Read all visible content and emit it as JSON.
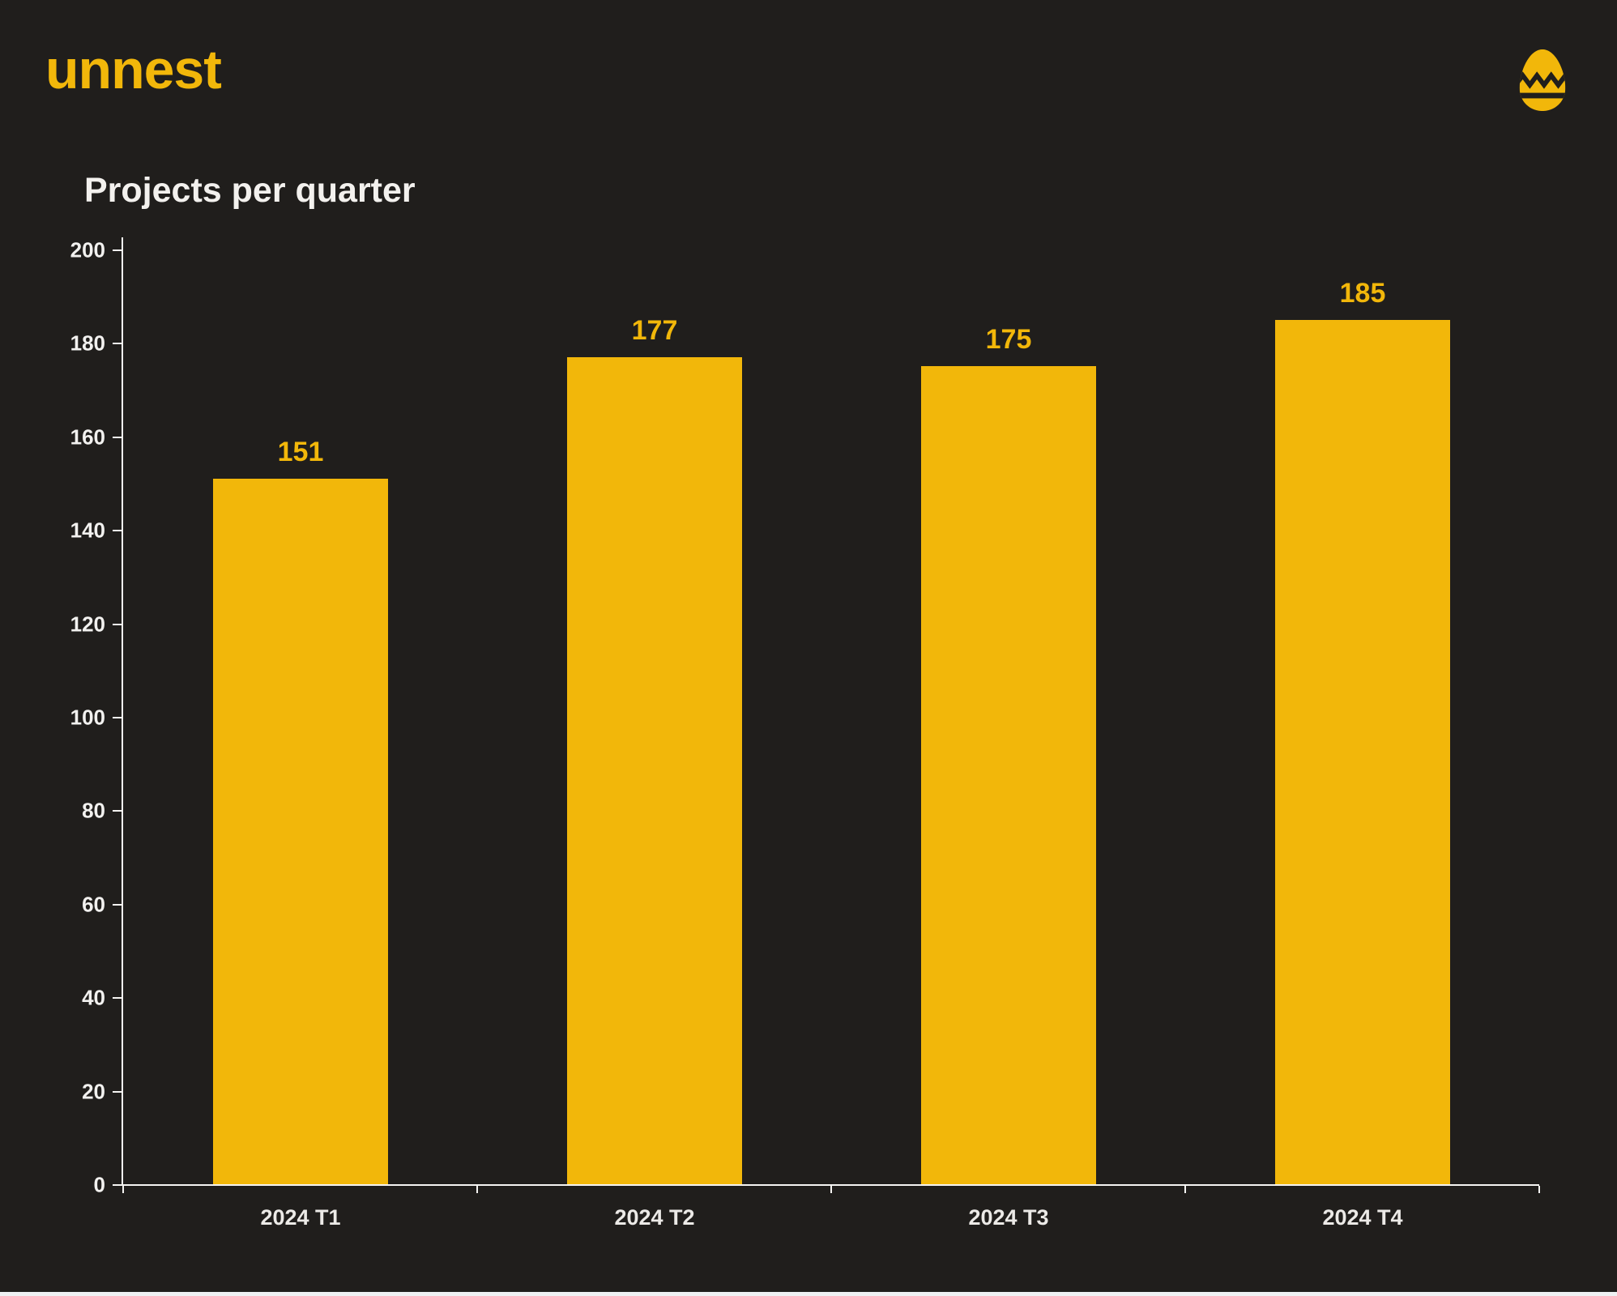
{
  "brand": {
    "logo_text": "unnest",
    "logo_color": "#f2b70a"
  },
  "chart_data": {
    "type": "bar",
    "title": "Projects per quarter",
    "categories": [
      "2024 T1",
      "2024 T2",
      "2024 T3",
      "2024 T4"
    ],
    "values": [
      151,
      177,
      175,
      185
    ],
    "xlabel": "",
    "ylabel": "",
    "ylim": [
      0,
      200
    ],
    "yticks": [
      0,
      20,
      40,
      60,
      80,
      100,
      120,
      140,
      160,
      180,
      200
    ],
    "grid": false,
    "legend_position": "none",
    "data_labels": true,
    "bar_color": "#f2b70a",
    "value_label_color": "#f2b70a",
    "axis_color": "#f5f4f2",
    "tick_label_color": "#f2f1ef",
    "background_color": "#201e1c"
  },
  "footer": {
    "strip_color": "#eff1f3"
  }
}
